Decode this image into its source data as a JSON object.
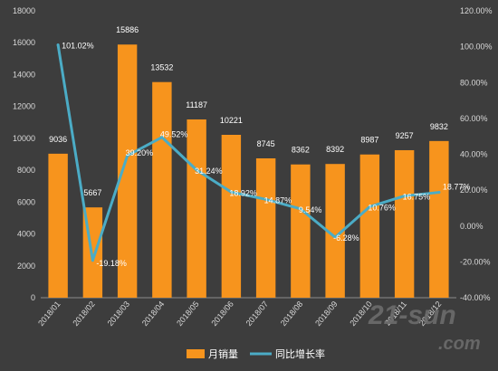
{
  "chart_data": {
    "type": "bar",
    "categories": [
      "2018/01",
      "2018/02",
      "2018/03",
      "2018/04",
      "2018/05",
      "2018/06",
      "2018/07",
      "2018/08",
      "2018/09",
      "2018/10",
      "2018/11",
      "2018/12"
    ],
    "series": [
      {
        "name": "月销量",
        "type": "bar",
        "axis": "left",
        "values": [
          9036,
          5667,
          15886,
          13532,
          11187,
          10221,
          8745,
          8362,
          8392,
          8987,
          9257,
          9832
        ],
        "labels": [
          "9036",
          "5667",
          "15886",
          "13532",
          "11187",
          "10221",
          "8745",
          "8362",
          "8392",
          "8987",
          "9257",
          "9832"
        ],
        "color": "#f7941d"
      },
      {
        "name": "同比增长率",
        "type": "line",
        "axis": "right",
        "values": [
          101.02,
          -19.18,
          39.2,
          49.52,
          31.24,
          18.92,
          14.87,
          9.54,
          -6.28,
          10.76,
          16.75,
          18.77
        ],
        "labels": [
          "101.02%",
          "-19.18%",
          "39.20%",
          "49.52%",
          "31.24%",
          "18.92%",
          "14.87%",
          "9.54%",
          "-6.28%",
          "10.76%",
          "16.75%",
          "18.77%"
        ],
        "color": "#4bacc6"
      }
    ],
    "y_left": {
      "range": [
        0,
        18000
      ],
      "ticks": [
        0,
        2000,
        4000,
        6000,
        8000,
        10000,
        12000,
        14000,
        16000,
        18000
      ],
      "tick_labels": [
        "0",
        "2000",
        "4000",
        "6000",
        "8000",
        "10000",
        "12000",
        "14000",
        "16000",
        "18000"
      ]
    },
    "y_right": {
      "range": [
        -40,
        120
      ],
      "ticks": [
        -40,
        -20,
        0,
        20,
        40,
        60,
        80,
        100,
        120
      ],
      "tick_labels": [
        "-40.00%",
        "-20.00%",
        "0.00%",
        "20.00%",
        "40.00%",
        "60.00%",
        "80.00%",
        "100.00%",
        "120.00%"
      ]
    },
    "legend": {
      "position": "bottom",
      "items": [
        {
          "label": "月销量",
          "marker": "bar",
          "color": "#f7941d"
        },
        {
          "label": "同比增长率",
          "marker": "line",
          "color": "#4bacc6"
        }
      ]
    },
    "grid": false
  },
  "watermark": {
    "text_main": "21-sun",
    "text_sub": ".com"
  },
  "colors": {
    "background": "#3d3d3d",
    "axis_text": "#d9d9d9",
    "label_text": "#ffffff"
  }
}
